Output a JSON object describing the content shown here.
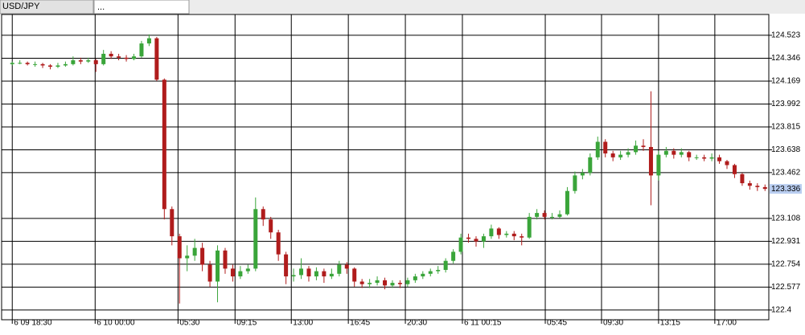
{
  "tabs": [
    "USD/JPY",
    "..."
  ],
  "chart_data": {
    "type": "candlestick",
    "up_color": "#3aa53a",
    "down_color": "#b01c1c",
    "grid": true,
    "ylim": [
      122.325,
      124.684
    ],
    "yticks": [
      122.4,
      122.577,
      122.754,
      122.931,
      123.108,
      123.462,
      123.638,
      123.815,
      123.992,
      124.169,
      124.346,
      124.523
    ],
    "xlim": [
      -1.4,
      99.5
    ],
    "xticks": [
      {
        "value": 0,
        "label": "6 09 18:30"
      },
      {
        "value": 10.9,
        "label": "6 10 00:00"
      },
      {
        "value": 21.8,
        "label": "05:30"
      },
      {
        "value": 29.3,
        "label": "09:15"
      },
      {
        "value": 36.7,
        "label": "13:00"
      },
      {
        "value": 44.2,
        "label": "16:45"
      },
      {
        "value": 51.7,
        "label": "20:30"
      },
      {
        "value": 59.2,
        "label": "6 11 00:15"
      },
      {
        "value": 70.1,
        "label": "05:45"
      },
      {
        "value": 77.5,
        "label": "09:30"
      },
      {
        "value": 85.0,
        "label": "13:15"
      },
      {
        "value": 92.4,
        "label": "17:00"
      }
    ],
    "open": [
      124.3,
      124.31,
      124.31,
      124.3,
      124.3,
      124.29,
      124.28,
      124.29,
      124.3,
      124.33,
      124.32,
      124.33,
      124.3,
      124.38,
      124.36,
      124.35,
      124.34,
      124.36,
      124.46,
      124.5,
      124.18,
      123.18,
      122.97,
      122.8,
      122.82,
      122.88,
      122.75,
      122.62,
      122.86,
      122.72,
      122.66,
      122.7,
      122.72,
      123.18,
      123.1,
      123.0,
      122.83,
      122.66,
      122.67,
      122.72,
      122.66,
      122.7,
      122.66,
      122.68,
      122.75,
      122.72,
      122.62,
      122.6,
      122.61,
      122.63,
      122.59,
      122.61,
      122.6,
      122.63,
      122.66,
      122.68,
      122.7,
      122.71,
      122.78,
      122.85,
      122.96,
      122.95,
      122.93,
      122.97,
      123.03,
      122.98,
      122.99,
      122.97,
      122.96,
      123.12,
      123.15,
      123.12,
      123.12,
      123.14,
      123.32,
      123.44,
      123.46,
      123.58,
      123.7,
      123.61,
      123.58,
      123.6,
      123.62,
      123.67,
      123.66,
      123.44,
      123.6,
      123.63,
      123.6,
      123.62,
      123.58,
      123.58,
      123.57,
      123.58,
      123.55,
      123.52,
      123.45,
      123.38,
      123.36,
      123.35
    ],
    "high": [
      124.32,
      124.33,
      124.32,
      124.32,
      124.31,
      124.3,
      124.31,
      124.32,
      124.36,
      124.35,
      124.35,
      124.34,
      124.41,
      124.4,
      124.38,
      124.37,
      124.38,
      124.48,
      124.53,
      124.51,
      124.19,
      123.2,
      122.99,
      122.9,
      122.95,
      122.92,
      122.78,
      122.9,
      122.88,
      122.75,
      122.74,
      122.75,
      123.27,
      123.2,
      123.12,
      123.02,
      122.85,
      122.72,
      122.8,
      122.74,
      122.73,
      122.72,
      122.72,
      122.78,
      122.77,
      122.73,
      122.64,
      122.64,
      122.66,
      122.65,
      122.63,
      122.63,
      122.65,
      122.68,
      122.7,
      122.72,
      122.74,
      122.8,
      122.87,
      122.99,
      122.99,
      122.97,
      122.99,
      123.06,
      123.04,
      123.01,
      123.01,
      122.99,
      123.15,
      123.18,
      123.17,
      123.15,
      123.17,
      123.35,
      123.47,
      123.49,
      123.61,
      123.74,
      123.72,
      123.63,
      123.63,
      123.65,
      123.71,
      123.72,
      124.09,
      123.63,
      123.66,
      123.65,
      123.65,
      123.63,
      123.6,
      123.6,
      123.61,
      123.6,
      123.56,
      123.53,
      123.46,
      123.4,
      123.38,
      123.37
    ],
    "low": [
      124.29,
      124.3,
      124.29,
      124.28,
      124.27,
      124.26,
      124.27,
      124.28,
      124.29,
      124.3,
      124.31,
      124.24,
      124.29,
      124.34,
      124.33,
      124.32,
      124.33,
      124.35,
      124.44,
      124.17,
      123.1,
      122.9,
      122.45,
      122.7,
      122.78,
      122.7,
      122.58,
      122.46,
      122.68,
      122.62,
      122.64,
      122.68,
      122.7,
      123.05,
      122.95,
      122.78,
      122.6,
      122.62,
      122.64,
      122.62,
      122.63,
      122.61,
      122.64,
      122.66,
      122.68,
      122.58,
      122.57,
      122.57,
      122.59,
      122.56,
      122.57,
      122.57,
      122.58,
      122.61,
      122.64,
      122.66,
      122.68,
      122.69,
      122.76,
      122.83,
      122.92,
      122.89,
      122.88,
      122.95,
      122.95,
      122.96,
      122.94,
      122.9,
      122.95,
      123.1,
      123.1,
      123.1,
      123.11,
      123.13,
      123.3,
      123.41,
      123.44,
      123.56,
      123.58,
      123.55,
      123.56,
      123.58,
      123.6,
      123.63,
      123.21,
      123.4,
      123.58,
      123.57,
      123.58,
      123.55,
      123.56,
      123.55,
      123.55,
      123.53,
      123.49,
      123.42,
      123.36,
      123.33,
      123.32,
      123.32
    ],
    "close": [
      124.31,
      124.31,
      124.3,
      124.3,
      124.29,
      124.28,
      124.29,
      124.3,
      124.33,
      124.32,
      124.33,
      124.3,
      124.38,
      124.36,
      124.35,
      124.34,
      124.36,
      124.46,
      124.5,
      124.18,
      123.18,
      122.97,
      122.8,
      122.82,
      122.88,
      122.75,
      122.62,
      122.86,
      122.72,
      122.66,
      122.7,
      122.72,
      123.18,
      123.1,
      123.0,
      122.83,
      122.66,
      122.67,
      122.72,
      122.66,
      122.7,
      122.66,
      122.68,
      122.75,
      122.72,
      122.62,
      122.6,
      122.61,
      122.63,
      122.59,
      122.61,
      122.6,
      122.63,
      122.66,
      122.68,
      122.7,
      122.71,
      122.78,
      122.85,
      122.96,
      122.95,
      122.93,
      122.97,
      123.03,
      122.98,
      122.99,
      122.97,
      122.96,
      123.12,
      123.15,
      123.12,
      123.12,
      123.14,
      123.32,
      123.44,
      123.46,
      123.58,
      123.7,
      123.61,
      123.58,
      123.6,
      123.62,
      123.67,
      123.66,
      123.44,
      123.6,
      123.63,
      123.6,
      123.62,
      123.58,
      123.58,
      123.57,
      123.58,
      123.55,
      123.52,
      123.45,
      123.38,
      123.36,
      123.35,
      123.336
    ]
  }
}
